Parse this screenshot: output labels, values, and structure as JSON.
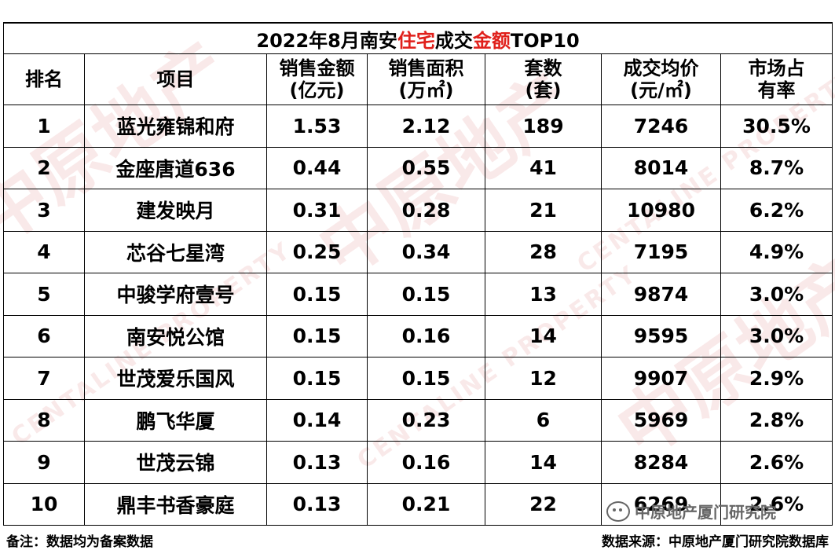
{
  "title": {
    "prefix": "2022年8月南安",
    "hl1": "住宅",
    "mid": "成交",
    "hl2": "金额",
    "suffix": "TOP10"
  },
  "columns": [
    {
      "line1": "排名",
      "line2": ""
    },
    {
      "line1": "项目",
      "line2": ""
    },
    {
      "line1": "销售金额",
      "line2": "(亿元)"
    },
    {
      "line1": "销售面积",
      "line2": "(万㎡)"
    },
    {
      "line1": "套数",
      "line2": "(套)"
    },
    {
      "line1": "成交均价",
      "line2": "(元/㎡)"
    },
    {
      "line1": "市场占",
      "line2": "有率"
    }
  ],
  "rows": [
    [
      "1",
      "蓝光雍锦和府",
      "1.53",
      "2.12",
      "189",
      "7246",
      "30.5%"
    ],
    [
      "2",
      "金座唐道636",
      "0.44",
      "0.55",
      "41",
      "8014",
      "8.7%"
    ],
    [
      "3",
      "建发映月",
      "0.31",
      "0.28",
      "21",
      "10980",
      "6.2%"
    ],
    [
      "4",
      "芯谷七星湾",
      "0.25",
      "0.34",
      "28",
      "7195",
      "4.9%"
    ],
    [
      "5",
      "中骏学府壹号",
      "0.15",
      "0.15",
      "13",
      "9874",
      "3.0%"
    ],
    [
      "6",
      "南安悦公馆",
      "0.15",
      "0.16",
      "14",
      "9595",
      "3.0%"
    ],
    [
      "7",
      "世茂爱乐国风",
      "0.15",
      "0.15",
      "12",
      "9907",
      "2.9%"
    ],
    [
      "8",
      "鹏飞华厦",
      "0.14",
      "0.23",
      "6",
      "5969",
      "2.8%"
    ],
    [
      "9",
      "世茂云锦",
      "0.13",
      "0.16",
      "14",
      "8284",
      "2.6%"
    ],
    [
      "10",
      "鼎丰书香豪庭",
      "0.13",
      "0.21",
      "22",
      "6269",
      "2.6%"
    ]
  ],
  "footer": {
    "note": "备注：数据均为备案数据",
    "source": "数据来源：中原地产厦门研究院数据库"
  },
  "watermark": {
    "logo_text": "中原地产",
    "sub_text": "CENTALINE PROPERTY",
    "wechat_account": "中原地产厦门研究院"
  },
  "colors": {
    "highlight": "#e0201b",
    "watermark": "#c82828"
  }
}
